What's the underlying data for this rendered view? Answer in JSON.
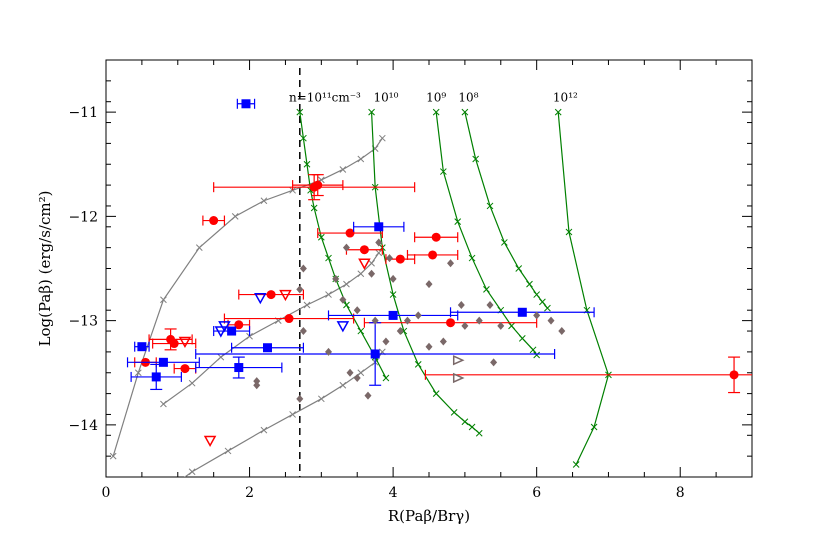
{
  "chart_data": {
    "type": "scatter",
    "title": "",
    "xlabel": "R(Paβ/Brγ)",
    "ylabel": "Log(Paβ)  (erg/s/cm²)",
    "xlim": [
      0,
      9
    ],
    "ylim": [
      -14.5,
      -10.5
    ],
    "xticks": [
      0,
      2,
      4,
      6,
      8
    ],
    "yticks": [
      -14,
      -13,
      -12,
      -11
    ],
    "xtick_labels": [
      "0",
      "2",
      "4",
      "6",
      "8"
    ],
    "ytick_labels": [
      "−14",
      "−13",
      "−12",
      "−11"
    ],
    "threshold_line_x": 2.7,
    "annotations": [
      {
        "text": "n=10¹¹cm⁻³",
        "x": 3.05,
        "y": -10.85
      },
      {
        "text": "10¹⁰",
        "x": 3.9,
        "y": -10.85
      },
      {
        "text": "10⁹",
        "x": 4.6,
        "y": -10.85
      },
      {
        "text": "10⁸",
        "x": 5.05,
        "y": -10.85
      },
      {
        "text": "10¹²",
        "x": 6.4,
        "y": -10.85
      }
    ],
    "model_curves": [
      {
        "name": "grey-1",
        "color": "#808080",
        "x": [
          0.1,
          0.45,
          0.8,
          1.3,
          1.8,
          2.2,
          2.6,
          3.0,
          3.3,
          3.55,
          3.75,
          3.85
        ],
        "y": [
          -14.3,
          -13.5,
          -12.8,
          -12.3,
          -12.0,
          -11.85,
          -11.75,
          -11.65,
          -11.55,
          -11.45,
          -11.35,
          -11.25
        ]
      },
      {
        "name": "grey-2",
        "color": "#808080",
        "x": [
          0.8,
          1.2,
          1.6,
          2.0,
          2.4,
          2.8,
          3.1,
          3.35,
          3.55,
          3.7,
          3.8
        ],
        "y": [
          -13.8,
          -13.6,
          -13.35,
          -13.15,
          -13.0,
          -12.85,
          -12.75,
          -12.65,
          -12.55,
          -12.45,
          -12.35
        ]
      },
      {
        "name": "grey-3",
        "color": "#808080",
        "x": [
          0.7,
          1.2,
          1.7,
          2.2,
          2.6,
          3.0,
          3.3,
          3.55,
          3.75,
          3.85
        ],
        "y": [
          -14.7,
          -14.45,
          -14.25,
          -14.05,
          -13.9,
          -13.75,
          -13.62,
          -13.5,
          -13.4,
          -13.3
        ]
      },
      {
        "name": "n=1e11",
        "color": "#008000",
        "x": [
          2.7,
          2.75,
          2.8,
          2.85,
          2.9,
          3.0,
          3.1,
          3.2,
          3.35,
          3.55,
          3.75,
          3.9
        ],
        "y": [
          -11.0,
          -11.25,
          -11.5,
          -11.75,
          -11.92,
          -12.2,
          -12.4,
          -12.6,
          -12.85,
          -13.1,
          -13.35,
          -13.55
        ]
      },
      {
        "name": "n=1e10",
        "color": "#008000",
        "x": [
          3.7,
          3.75,
          3.85,
          4.0,
          4.15,
          4.35,
          4.6,
          4.85,
          5.0,
          5.1,
          5.2
        ],
        "y": [
          -11.0,
          -11.72,
          -12.3,
          -12.75,
          -13.1,
          -13.42,
          -13.7,
          -13.88,
          -13.97,
          -14.02,
          -14.08
        ]
      },
      {
        "name": "n=1e9",
        "color": "#008000",
        "x": [
          4.6,
          4.7,
          4.9,
          5.1,
          5.3,
          5.5,
          5.65,
          5.8,
          5.95,
          6.0
        ],
        "y": [
          -11.0,
          -11.57,
          -12.05,
          -12.4,
          -12.7,
          -12.9,
          -13.05,
          -13.17,
          -13.28,
          -13.33
        ]
      },
      {
        "name": "n=1e8",
        "color": "#008000",
        "x": [
          5.0,
          5.15,
          5.35,
          5.55,
          5.75,
          5.9,
          6.0,
          6.08,
          6.15
        ],
        "y": [
          -11.0,
          -11.45,
          -11.9,
          -12.25,
          -12.5,
          -12.65,
          -12.75,
          -12.82,
          -12.88
        ]
      },
      {
        "name": "n=1e12",
        "color": "#008000",
        "x": [
          6.3,
          6.45,
          6.7,
          7.0,
          6.8,
          6.55
        ],
        "y": [
          -11.0,
          -12.15,
          -12.9,
          -13.52,
          -14.02,
          -14.38
        ]
      }
    ],
    "series": [
      {
        "name": "red-filled",
        "color": "#ff0000",
        "marker": "circle-filled",
        "points": [
          {
            "x": 1.5,
            "y": -12.04,
            "xerr": 0.15
          },
          {
            "x": 2.95,
            "y": -11.7,
            "xerr": 0.35,
            "yerr": 0.1
          },
          {
            "x": 2.9,
            "y": -11.72,
            "xerr": 1.4,
            "yerr": 0.12
          },
          {
            "x": 3.4,
            "y": -12.16,
            "xerr": 0.45
          },
          {
            "x": 3.6,
            "y": -12.32,
            "xerr": 0.25
          },
          {
            "x": 4.1,
            "y": -12.41,
            "xerr": 0.2
          },
          {
            "x": 4.55,
            "y": -12.37,
            "xerr": 0.35
          },
          {
            "x": 4.6,
            "y": -12.2,
            "xerr": 0.3
          },
          {
            "x": 2.3,
            "y": -12.75,
            "xerr": 0.45
          },
          {
            "x": 2.55,
            "y": -12.98,
            "xerr": 0.9
          },
          {
            "x": 1.85,
            "y": -13.04,
            "xerr": 0.15
          },
          {
            "x": 0.9,
            "y": -13.18,
            "xerr": 0.3,
            "yerr": 0.1
          },
          {
            "x": 0.95,
            "y": -13.22,
            "xerr": 0.3
          },
          {
            "x": 0.55,
            "y": -13.4,
            "xerr": 0.15
          },
          {
            "x": 1.1,
            "y": -13.46,
            "xerr": 0.15
          },
          {
            "x": 4.8,
            "y": -13.02,
            "xerr": 1.2
          },
          {
            "x": 8.75,
            "y": -13.52,
            "xerr": 4.3,
            "yerr": 0.17
          }
        ]
      },
      {
        "name": "blue-filled",
        "color": "#0000ff",
        "marker": "square-filled",
        "points": [
          {
            "x": 1.95,
            "y": -10.92,
            "xerr": 0.12
          },
          {
            "x": 3.8,
            "y": -12.1,
            "xerr": 0.35
          },
          {
            "x": 4.0,
            "y": -12.95,
            "xerr": 0.9
          },
          {
            "x": 5.8,
            "y": -12.92,
            "xerr": 1.0
          },
          {
            "x": 0.5,
            "y": -13.25,
            "xerr": 0.1
          },
          {
            "x": 1.75,
            "y": -13.1,
            "xerr": 0.25
          },
          {
            "x": 2.25,
            "y": -13.26,
            "xerr": 0.5
          },
          {
            "x": 0.8,
            "y": -13.4,
            "xerr": 0.5
          },
          {
            "x": 1.85,
            "y": -13.45,
            "xerr": 0.6,
            "yerr": 0.1
          },
          {
            "x": 0.7,
            "y": -13.54,
            "xerr": 0.35,
            "yerr": 0.12
          },
          {
            "x": 3.75,
            "y": -13.32,
            "xerr": 2.5,
            "yerr": 0.3
          }
        ]
      },
      {
        "name": "red-open-triangle",
        "color": "#ff0000",
        "marker": "triangle-down-open",
        "points": [
          {
            "x": 2.5,
            "y": -12.75
          },
          {
            "x": 3.6,
            "y": -12.45
          },
          {
            "x": 1.45,
            "y": -14.15
          },
          {
            "x": 1.1,
            "y": -13.2
          }
        ]
      },
      {
        "name": "blue-open-triangle",
        "color": "#0000ff",
        "marker": "triangle-down-open",
        "points": [
          {
            "x": 2.15,
            "y": -12.78
          },
          {
            "x": 1.65,
            "y": -13.05
          },
          {
            "x": 1.6,
            "y": -13.1
          },
          {
            "x": 3.3,
            "y": -13.05
          }
        ]
      },
      {
        "name": "grey-open-triangle",
        "color": "#7a6868",
        "marker": "triangle-right-open",
        "points": [
          {
            "x": 4.9,
            "y": -13.38
          },
          {
            "x": 4.9,
            "y": -13.55
          }
        ]
      },
      {
        "name": "grey-diamonds",
        "color": "#7a6868",
        "marker": "diamond-filled",
        "points": [
          {
            "x": 2.75,
            "y": -12.5
          },
          {
            "x": 2.7,
            "y": -12.7
          },
          {
            "x": 2.75,
            "y": -13.1
          },
          {
            "x": 2.7,
            "y": -13.75
          },
          {
            "x": 2.1,
            "y": -13.58
          },
          {
            "x": 2.1,
            "y": -13.62
          },
          {
            "x": 3.1,
            "y": -13.3
          },
          {
            "x": 3.4,
            "y": -13.5
          },
          {
            "x": 3.5,
            "y": -13.55
          },
          {
            "x": 3.65,
            "y": -13.72
          },
          {
            "x": 3.8,
            "y": -12.25
          },
          {
            "x": 3.95,
            "y": -12.4
          },
          {
            "x": 3.2,
            "y": -12.6
          },
          {
            "x": 3.3,
            "y": -12.8
          },
          {
            "x": 3.5,
            "y": -12.9
          },
          {
            "x": 3.7,
            "y": -12.55
          },
          {
            "x": 3.75,
            "y": -13.0
          },
          {
            "x": 4.2,
            "y": -13.0
          },
          {
            "x": 4.35,
            "y": -12.95
          },
          {
            "x": 4.5,
            "y": -13.25
          },
          {
            "x": 4.7,
            "y": -13.2
          },
          {
            "x": 4.5,
            "y": -12.65
          },
          {
            "x": 4.95,
            "y": -12.85
          },
          {
            "x": 5.0,
            "y": -13.05
          },
          {
            "x": 5.35,
            "y": -12.85
          },
          {
            "x": 5.2,
            "y": -13.0
          },
          {
            "x": 5.4,
            "y": -13.4
          },
          {
            "x": 5.5,
            "y": -13.05
          },
          {
            "x": 6.0,
            "y": -12.95
          },
          {
            "x": 6.2,
            "y": -13.0
          },
          {
            "x": 6.35,
            "y": -13.1
          },
          {
            "x": 3.35,
            "y": -12.3
          },
          {
            "x": 3.9,
            "y": -13.2
          },
          {
            "x": 4.8,
            "y": -12.45
          },
          {
            "x": 4.1,
            "y": -13.1
          },
          {
            "x": 4.0,
            "y": -12.6
          }
        ]
      }
    ]
  }
}
